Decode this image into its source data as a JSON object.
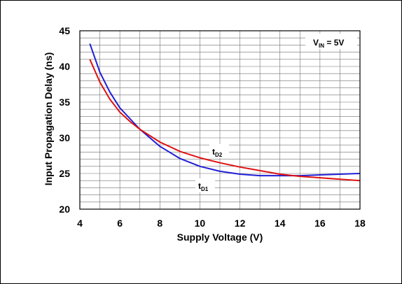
{
  "chart_data": {
    "type": "line",
    "xlabel": "Supply Voltage (V)",
    "ylabel": "Input Propagation Delay (ns)",
    "xlim": [
      4,
      18
    ],
    "ylim": [
      20,
      45
    ],
    "x_ticks": [
      "4",
      "6",
      "8",
      "10",
      "12",
      "14",
      "16",
      "18"
    ],
    "y_ticks": [
      "20",
      "25",
      "30",
      "35",
      "40",
      "45"
    ],
    "grid": true,
    "series": [
      {
        "name": "tD1",
        "main": "t",
        "sub": "D1",
        "color": "#1f1fd6",
        "x": [
          4.5,
          5,
          5.5,
          6,
          6.5,
          7,
          8,
          9,
          10,
          11,
          12,
          13,
          14,
          15,
          16,
          17,
          18
        ],
        "y": [
          43.2,
          39.2,
          36.4,
          34.2,
          32.7,
          31.2,
          28.8,
          27.1,
          26.0,
          25.3,
          24.9,
          24.7,
          24.7,
          24.7,
          24.8,
          24.9,
          25.0
        ]
      },
      {
        "name": "tD2",
        "main": "t",
        "sub": "D2",
        "color": "#e01010",
        "x": [
          4.5,
          5,
          5.5,
          6,
          6.5,
          7,
          8,
          9,
          10,
          11,
          12,
          13,
          14,
          15,
          16,
          17,
          18
        ],
        "y": [
          41.0,
          37.8,
          35.4,
          33.6,
          32.3,
          31.2,
          29.4,
          28.1,
          27.2,
          26.5,
          25.9,
          25.4,
          24.9,
          24.6,
          24.4,
          24.2,
          24.0
        ]
      }
    ],
    "annotation": {
      "main": "V",
      "sub": "IN",
      "rest": " = 5V"
    }
  }
}
